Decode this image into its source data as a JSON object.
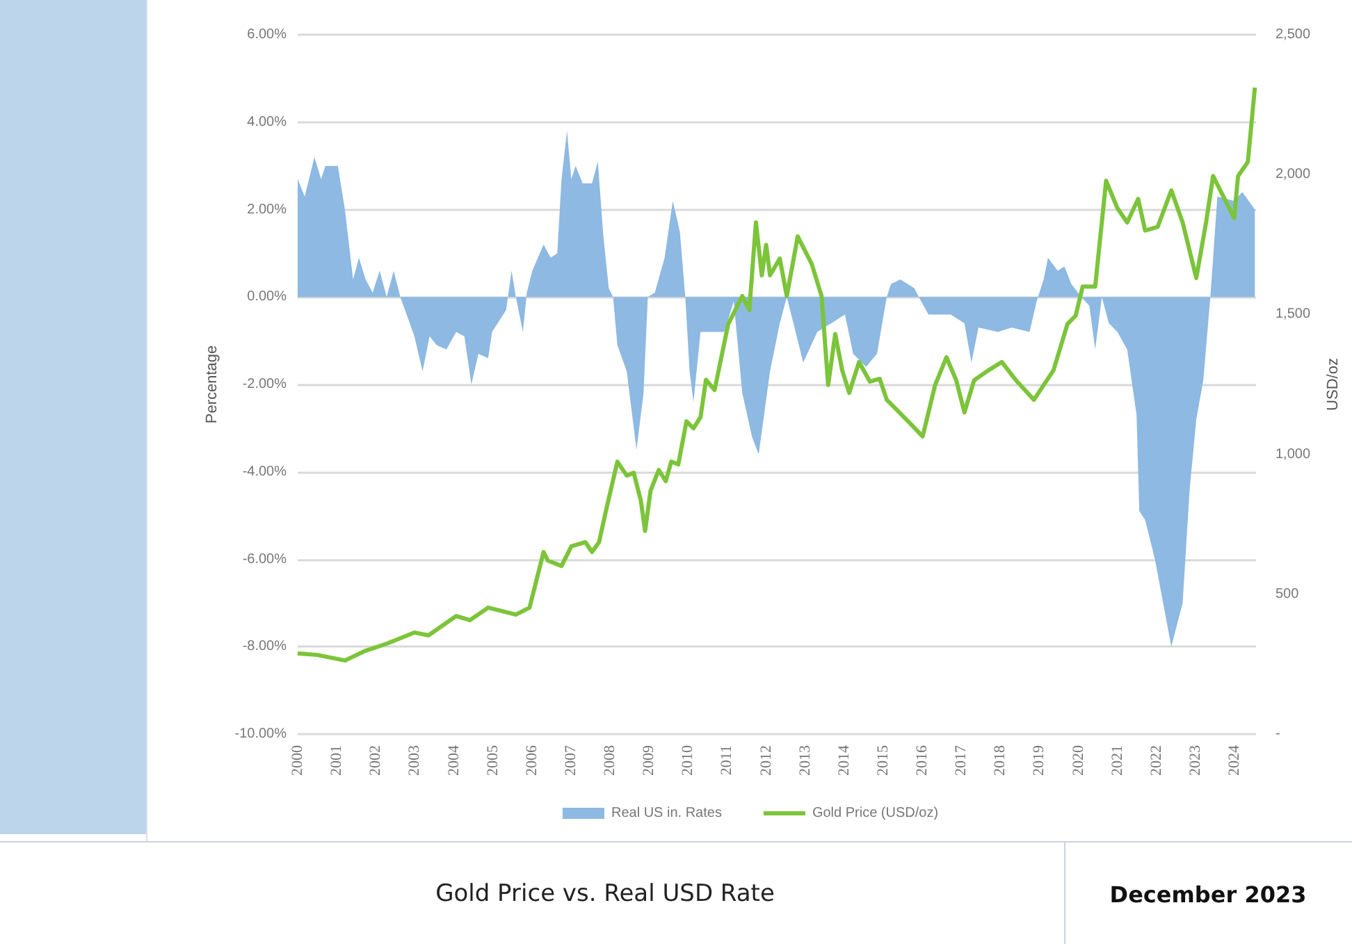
{
  "chart_data": {
    "type": "area",
    "title": "Gold Price vs. Real USD Rate",
    "annotations": [
      "December 2023"
    ],
    "ylabel": "Percentage",
    "y2label": "USD/oz",
    "xlim": [
      2000,
      2024.55
    ],
    "xticks": [
      2000,
      2001,
      2002,
      2003,
      2004,
      2005,
      2006,
      2007,
      2008,
      2009,
      2010,
      2011,
      2012,
      2013,
      2014,
      2015,
      2016,
      2017,
      2018,
      2019,
      2020,
      2021,
      2022,
      2023,
      2024
    ],
    "ylim": [
      -10,
      6
    ],
    "yticks": [
      {
        "value": -10,
        "label": "-10.00%"
      },
      {
        "value": -8,
        "label": "-8.00%"
      },
      {
        "value": -6,
        "label": "-6.00%"
      },
      {
        "value": -4,
        "label": "-4.00%"
      },
      {
        "value": -2,
        "label": "-2.00%"
      },
      {
        "value": 0,
        "label": "0.00%"
      },
      {
        "value": 2,
        "label": "2.00%"
      },
      {
        "value": 4,
        "label": "4.00%"
      },
      {
        "value": 6,
        "label": "6.00%"
      }
    ],
    "y2lim": [
      0,
      2500
    ],
    "y2ticks": [
      {
        "value": 0,
        "label": "-"
      },
      500,
      {
        "value": 1000,
        "label": "1,000"
      },
      {
        "value": 1500,
        "label": "1,500"
      },
      {
        "value": 2000,
        "label": "2,000"
      },
      {
        "value": 2500,
        "label": "2,500"
      }
    ],
    "grid": "y",
    "legend": "bottom",
    "marker": "none",
    "line_style": "solid",
    "series": [
      {
        "name": "Real US in. Rates",
        "color": "#8db9e2",
        "x": [
          2000.0,
          2000.18,
          2000.43,
          2000.6,
          2000.71,
          2001.03,
          2001.21,
          2001.42,
          2001.57,
          2001.74,
          2001.92,
          2002.1,
          2002.28,
          2002.46,
          2002.63,
          2002.99,
          2003.2,
          2003.38,
          2003.56,
          2003.81,
          2004.06,
          2004.27,
          2004.45,
          2004.63,
          2004.88,
          2004.98,
          2005.34,
          2005.48,
          2005.59,
          2005.77,
          2005.87,
          2006.01,
          2006.3,
          2006.48,
          2006.65,
          2006.76,
          2006.9,
          2007.01,
          2007.12,
          2007.3,
          2007.54,
          2007.69,
          2007.83,
          2007.97,
          2008.08,
          2008.19,
          2008.43,
          2008.68,
          2008.86,
          2008.97,
          2009.15,
          2009.4,
          2009.61,
          2009.79,
          2009.93,
          2010.04,
          2010.14,
          2010.32,
          2010.93,
          2011.17,
          2011.39,
          2011.64,
          2011.81,
          2012.1,
          2012.35,
          2012.53,
          2012.7,
          2012.95,
          2013.31,
          2013.67,
          2014.02,
          2014.23,
          2014.56,
          2014.84,
          2015.09,
          2015.2,
          2015.44,
          2015.8,
          2015.91,
          2016.16,
          2016.73,
          2017.08,
          2017.26,
          2017.44,
          2017.94,
          2018.29,
          2018.75,
          2018.93,
          2019.11,
          2019.22,
          2019.47,
          2019.64,
          2019.82,
          2020.07,
          2020.28,
          2020.43,
          2020.6,
          2020.78,
          2021.0,
          2021.25,
          2021.49,
          2021.56,
          2021.71,
          2021.96,
          2022.38,
          2022.67,
          2022.85,
          2023.02,
          2023.2,
          2023.38,
          2023.56,
          2023.99,
          2024.2,
          2024.52
        ],
        "values": [
          2.7,
          2.3,
          3.2,
          2.7,
          3.0,
          3.0,
          2.0,
          0.4,
          0.9,
          0.4,
          0.1,
          0.6,
          0.0,
          0.6,
          0.0,
          -0.9,
          -1.7,
          -0.9,
          -1.1,
          -1.2,
          -0.8,
          -0.9,
          -2.0,
          -1.3,
          -1.4,
          -0.8,
          -0.3,
          0.6,
          0.0,
          -0.8,
          0.1,
          0.6,
          1.2,
          0.9,
          1.0,
          2.7,
          3.8,
          2.7,
          3.0,
          2.6,
          2.6,
          3.1,
          1.4,
          0.2,
          0.0,
          -1.1,
          -1.7,
          -3.5,
          -2.2,
          0.0,
          0.1,
          0.9,
          2.2,
          1.5,
          0.0,
          -1.7,
          -2.4,
          -0.8,
          -0.8,
          -0.1,
          -2.2,
          -3.2,
          -3.6,
          -1.7,
          -0.6,
          0.0,
          -0.6,
          -1.5,
          -0.8,
          -0.6,
          -0.4,
          -1.3,
          -1.6,
          -1.3,
          0.0,
          0.3,
          0.4,
          0.2,
          0.0,
          -0.4,
          -0.4,
          -0.6,
          -1.5,
          -0.7,
          -0.8,
          -0.7,
          -0.8,
          -0.1,
          0.4,
          0.9,
          0.6,
          0.7,
          0.3,
          0.0,
          -0.2,
          -1.2,
          0.0,
          -0.6,
          -0.8,
          -1.2,
          -2.7,
          -4.9,
          -5.1,
          -6.0,
          -8.0,
          -7.0,
          -4.4,
          -2.8,
          -1.9,
          0.0,
          2.3,
          2.2,
          2.4,
          2.0
        ]
      },
      {
        "name": "Gold Price (USD/oz)",
        "type": "line",
        "axis": "y2",
        "color": "#7cc43a",
        "x": [
          2000.0,
          2000.5,
          2001.21,
          2001.74,
          2002.28,
          2002.99,
          2003.35,
          2004.06,
          2004.41,
          2004.88,
          2005.59,
          2005.94,
          2006.3,
          2006.41,
          2006.76,
          2007.01,
          2007.37,
          2007.54,
          2007.72,
          2007.9,
          2008.19,
          2008.43,
          2008.61,
          2008.79,
          2008.9,
          2009.04,
          2009.25,
          2009.43,
          2009.57,
          2009.75,
          2009.96,
          2010.14,
          2010.32,
          2010.46,
          2010.68,
          2011.03,
          2011.39,
          2011.57,
          2011.74,
          2011.89,
          2012.0,
          2012.1,
          2012.35,
          2012.53,
          2012.81,
          2013.17,
          2013.42,
          2013.59,
          2013.77,
          2013.95,
          2014.13,
          2014.38,
          2014.66,
          2014.91,
          2015.09,
          2015.3,
          2015.66,
          2016.01,
          2016.33,
          2016.62,
          2016.87,
          2017.08,
          2017.33,
          2017.69,
          2018.04,
          2018.4,
          2018.86,
          2019.36,
          2019.72,
          2019.93,
          2020.11,
          2020.43,
          2020.71,
          2021.0,
          2021.25,
          2021.53,
          2021.71,
          2022.03,
          2022.38,
          2022.67,
          2023.02,
          2023.27,
          2023.45,
          2023.99,
          2024.09,
          2024.34,
          2024.52
        ],
        "values": [
          288,
          283,
          263,
          298,
          323,
          363,
          353,
          422,
          407,
          452,
          427,
          452,
          651,
          620,
          601,
          671,
          686,
          651,
          686,
          800,
          974,
          924,
          934,
          835,
          726,
          870,
          944,
          904,
          974,
          964,
          1118,
          1093,
          1133,
          1267,
          1230,
          1466,
          1566,
          1516,
          1829,
          1640,
          1749,
          1640,
          1700,
          1566,
          1779,
          1680,
          1566,
          1248,
          1430,
          1300,
          1220,
          1330,
          1260,
          1270,
          1195,
          1166,
          1115,
          1064,
          1248,
          1347,
          1265,
          1150,
          1265,
          1300,
          1330,
          1265,
          1195,
          1300,
          1466,
          1496,
          1600,
          1600,
          1978,
          1880,
          1829,
          1913,
          1800,
          1813,
          1944,
          1829,
          1630,
          1829,
          1995,
          1845,
          1995,
          2045,
          2311
        ]
      }
    ]
  }
}
